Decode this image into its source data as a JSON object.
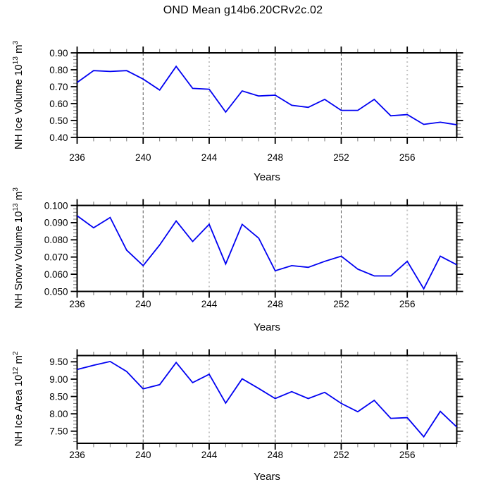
{
  "title": "OND Mean g14b6.20CRv2c.02",
  "colors": {
    "line": "#0000f2",
    "axis": "#000000",
    "minor_tick": "#777777",
    "grid_dark": "#5a5a5a",
    "grid_light": "#c4c4c4",
    "text": "#000000"
  },
  "chart_data": [
    {
      "type": "line",
      "ylabel": "NH Ice Volume 10^13 m^3",
      "ylabel_parts": {
        "a": "NH Ice Volume 10",
        "b": "13",
        "c": " m",
        "d": "3"
      },
      "xlabel": "Years",
      "x": [
        236,
        237,
        238,
        239,
        240,
        241,
        242,
        243,
        244,
        245,
        246,
        247,
        248,
        249,
        250,
        251,
        252,
        253,
        254,
        255,
        256,
        257,
        258,
        259
      ],
      "values": [
        0.725,
        0.795,
        0.79,
        0.795,
        0.745,
        0.68,
        0.82,
        0.69,
        0.685,
        0.55,
        0.675,
        0.645,
        0.65,
        0.59,
        0.578,
        0.625,
        0.56,
        0.56,
        0.625,
        0.528,
        0.535,
        0.477,
        0.49,
        0.475
      ],
      "xlim": [
        236,
        259
      ],
      "ylim": [
        0.4,
        0.9
      ],
      "yticks": [
        0.4,
        0.5,
        0.6,
        0.7,
        0.8,
        0.9
      ],
      "ytick_labels": [
        "0.40",
        "0.50",
        "0.60",
        "0.70",
        "0.80",
        "0.90"
      ],
      "y_minor_step": 0.02,
      "xticks": [
        236,
        240,
        244,
        248,
        252,
        256
      ],
      "xtick_labels": [
        "236",
        "240",
        "244",
        "248",
        "252",
        "256"
      ],
      "x_minor_step": 1,
      "gridlines": [
        {
          "x": 240,
          "style": "dark"
        },
        {
          "x": 244,
          "style": "light"
        },
        {
          "x": 248,
          "style": "dark"
        },
        {
          "x": 252,
          "style": "dark"
        },
        {
          "x": 256,
          "style": "light"
        }
      ],
      "grid": true,
      "legend": "none"
    },
    {
      "type": "line",
      "ylabel": "NH Snow Volume 10^13 m^3",
      "ylabel_parts": {
        "a": "NH Snow Volume 10",
        "b": "13",
        "c": " m",
        "d": "3"
      },
      "xlabel": "Years",
      "x": [
        236,
        237,
        238,
        239,
        240,
        241,
        242,
        243,
        244,
        245,
        246,
        247,
        248,
        249,
        250,
        251,
        252,
        253,
        254,
        255,
        256,
        257,
        258,
        259
      ],
      "values": [
        0.094,
        0.087,
        0.093,
        0.074,
        0.065,
        0.077,
        0.091,
        0.079,
        0.089,
        0.066,
        0.089,
        0.081,
        0.062,
        0.065,
        0.064,
        0.0675,
        0.0705,
        0.063,
        0.059,
        0.059,
        0.0675,
        0.0515,
        0.0705,
        0.0655
      ],
      "xlim": [
        236,
        259
      ],
      "ylim": [
        0.05,
        0.1
      ],
      "yticks": [
        0.05,
        0.06,
        0.07,
        0.08,
        0.09,
        0.1
      ],
      "ytick_labels": [
        "0.050",
        "0.060",
        "0.070",
        "0.080",
        "0.090",
        "0.100"
      ],
      "y_minor_step": 0.002,
      "xticks": [
        236,
        240,
        244,
        248,
        252,
        256
      ],
      "xtick_labels": [
        "236",
        "240",
        "244",
        "248",
        "252",
        "256"
      ],
      "x_minor_step": 1,
      "gridlines": [
        {
          "x": 240,
          "style": "dark"
        },
        {
          "x": 244,
          "style": "light"
        },
        {
          "x": 248,
          "style": "dark"
        },
        {
          "x": 252,
          "style": "dark"
        },
        {
          "x": 256,
          "style": "light"
        }
      ],
      "grid": true,
      "legend": "none"
    },
    {
      "type": "line",
      "ylabel": "NH Ice Area 10^12 m^2",
      "ylabel_parts": {
        "a": "NH Ice Area 10",
        "b": "12",
        "c": " m",
        "d": "2"
      },
      "xlabel": "Years",
      "x": [
        236,
        237,
        238,
        239,
        240,
        241,
        242,
        243,
        244,
        245,
        246,
        247,
        248,
        249,
        250,
        251,
        252,
        253,
        254,
        255,
        256,
        257,
        258,
        259
      ],
      "values": [
        9.28,
        9.4,
        9.51,
        9.22,
        8.72,
        8.84,
        9.48,
        8.9,
        9.14,
        8.31,
        9.01,
        8.73,
        8.44,
        8.64,
        8.44,
        8.62,
        8.3,
        8.06,
        8.39,
        7.87,
        7.89,
        7.34,
        8.07,
        7.62
      ],
      "xlim": [
        236,
        259
      ],
      "ylim": [
        7.15,
        9.68
      ],
      "yticks": [
        7.5,
        8.0,
        8.5,
        9.0,
        9.5
      ],
      "ytick_labels": [
        "7.50",
        "8.00",
        "8.50",
        "9.00",
        "9.50"
      ],
      "y_minor_step": 0.1,
      "xticks": [
        236,
        240,
        244,
        248,
        252,
        256
      ],
      "xtick_labels": [
        "236",
        "240",
        "244",
        "248",
        "252",
        "256"
      ],
      "x_minor_step": 1,
      "gridlines": [
        {
          "x": 240,
          "style": "dark"
        },
        {
          "x": 244,
          "style": "light"
        },
        {
          "x": 248,
          "style": "dark"
        },
        {
          "x": 252,
          "style": "dark"
        },
        {
          "x": 256,
          "style": "light"
        }
      ],
      "grid": true,
      "legend": "none"
    }
  ]
}
